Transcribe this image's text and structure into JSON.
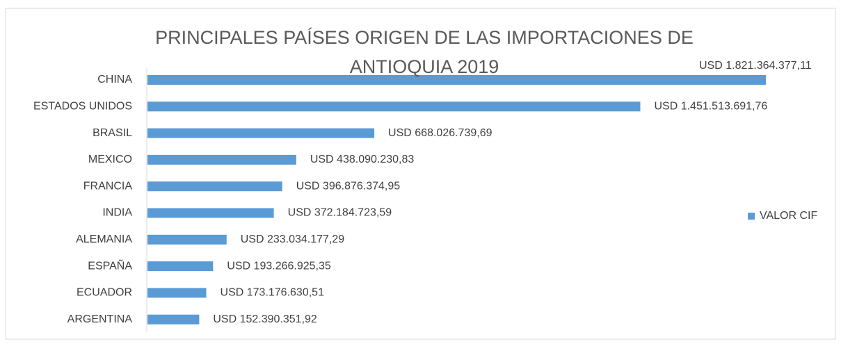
{
  "chart_data": {
    "type": "bar",
    "orientation": "horizontal",
    "title": "PRINCIPALES PAÍSES ORIGEN DE LAS IMPORTACIONES DE ANTIOQUIA 2019",
    "categories": [
      "CHINA",
      "ESTADOS UNIDOS",
      "BRASIL",
      "MEXICO",
      "FRANCIA",
      "INDIA",
      "ALEMANIA",
      "ESPAÑA",
      "ECUADOR",
      "ARGENTINA"
    ],
    "series": [
      {
        "name": "VALOR CIF",
        "color": "#5b9bd5",
        "values": [
          1821364377.11,
          1451513691.76,
          668026739.69,
          438090230.83,
          396876374.95,
          372184723.59,
          233034177.29,
          193266925.35,
          173176630.51,
          152390351.92
        ],
        "value_labels": [
          "USD 1.821.364.377,11",
          "USD 1.451.513.691,76",
          "USD 668.026.739,69",
          "USD 438.090.230,83",
          "USD 396.876.374,95",
          "USD 372.184.723,59",
          "USD 233.034.177,29",
          "USD 193.266.925,35",
          "USD 173.176.630,51",
          "USD 152.390.351,92"
        ]
      }
    ],
    "legend": "right"
  }
}
